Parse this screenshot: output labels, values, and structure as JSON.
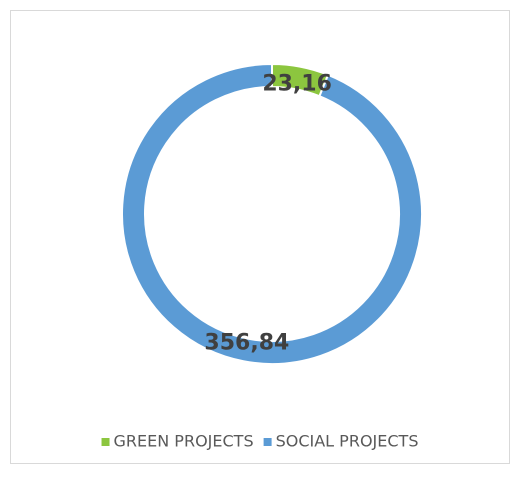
{
  "chart_data": {
    "type": "doughnut",
    "categories": [
      "GREEN PROJECTS",
      "SOCIAL PROJECTS"
    ],
    "values": [
      23.16,
      356.84
    ],
    "value_labels": [
      "23,16",
      "356,84"
    ],
    "colors": [
      "#8cc63f",
      "#5b9bd5"
    ],
    "legend": "bottom"
  }
}
